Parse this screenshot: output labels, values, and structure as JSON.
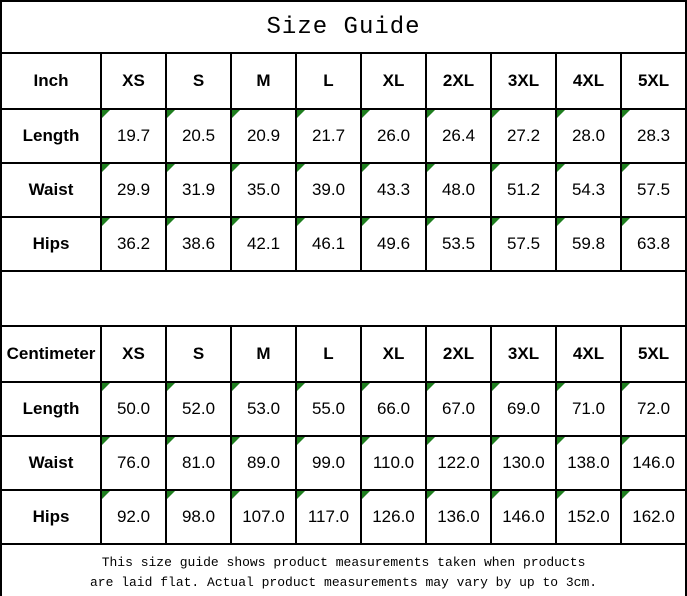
{
  "title": "Size Guide",
  "colors": {
    "border": "#000000",
    "text": "#000000",
    "background": "#ffffff",
    "flag_triangle": "#1e7e1e"
  },
  "tables": [
    {
      "unit_label": "Inch",
      "sizes": [
        "XS",
        "S",
        "M",
        "L",
        "XL",
        "2XL",
        "3XL",
        "4XL",
        "5XL"
      ],
      "rows": [
        {
          "label": "Length",
          "values": [
            "19.7",
            "20.5",
            "20.9",
            "21.7",
            "26.0",
            "26.4",
            "27.2",
            "28.0",
            "28.3"
          ]
        },
        {
          "label": "Waist",
          "values": [
            "29.9",
            "31.9",
            "35.0",
            "39.0",
            "43.3",
            "48.0",
            "51.2",
            "54.3",
            "57.5"
          ]
        },
        {
          "label": "Hips",
          "values": [
            "36.2",
            "38.6",
            "42.1",
            "46.1",
            "49.6",
            "53.5",
            "57.5",
            "59.8",
            "63.8"
          ]
        }
      ]
    },
    {
      "unit_label": "Centimeter",
      "sizes": [
        "XS",
        "S",
        "M",
        "L",
        "XL",
        "2XL",
        "3XL",
        "4XL",
        "5XL"
      ],
      "rows": [
        {
          "label": "Length",
          "values": [
            "50.0",
            "52.0",
            "53.0",
            "55.0",
            "66.0",
            "67.0",
            "69.0",
            "71.0",
            "72.0"
          ]
        },
        {
          "label": "Waist",
          "values": [
            "76.0",
            "81.0",
            "89.0",
            "99.0",
            "110.0",
            "122.0",
            "130.0",
            "138.0",
            "146.0"
          ]
        },
        {
          "label": "Hips",
          "values": [
            "92.0",
            "98.0",
            "107.0",
            "117.0",
            "126.0",
            "136.0",
            "146.0",
            "152.0",
            "162.0"
          ]
        }
      ]
    }
  ],
  "footer": {
    "line1": "This size guide shows product measurements taken when products",
    "line2": "are laid flat. Actual product measurements may vary by up to 3cm."
  }
}
